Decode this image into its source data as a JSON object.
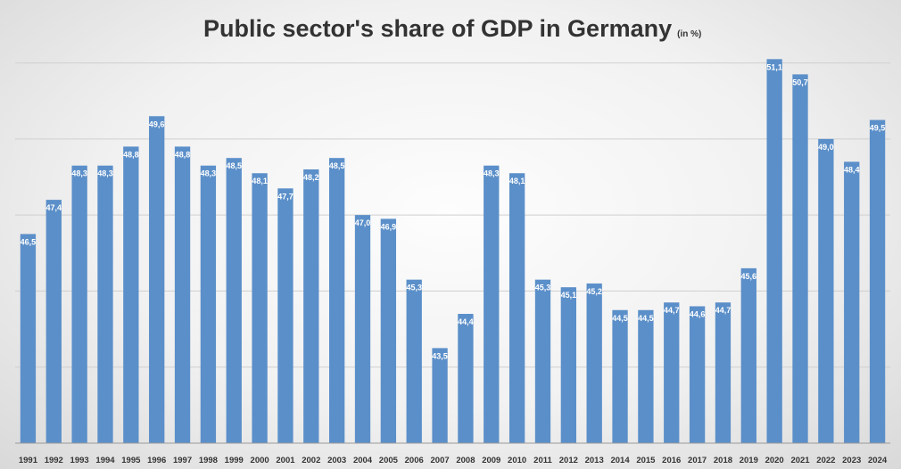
{
  "chart_data": {
    "type": "bar",
    "title": "Public sector's share of GDP in Germany",
    "subtitle": "(in %)",
    "xlabel": "",
    "ylabel": "",
    "ylim": [
      41,
      51.6
    ],
    "grid": true,
    "legend": "none",
    "bar_color": "#5b8fc9",
    "categories": [
      "1991",
      "1992",
      "1993",
      "1994",
      "1995",
      "1996",
      "1997",
      "1998",
      "1999",
      "2000",
      "2001",
      "2002",
      "2003",
      "2004",
      "2005",
      "2006",
      "2007",
      "2008",
      "2009",
      "2010",
      "2011",
      "2012",
      "2013",
      "2014",
      "2015",
      "2016",
      "2017",
      "2018",
      "2019",
      "2020",
      "2021",
      "2022",
      "2023",
      "2024"
    ],
    "values": [
      46.5,
      47.4,
      48.3,
      48.3,
      48.8,
      49.6,
      48.8,
      48.3,
      48.5,
      48.1,
      47.7,
      48.2,
      48.5,
      47.0,
      46.9,
      45.3,
      43.5,
      44.4,
      48.3,
      48.1,
      45.3,
      45.1,
      45.2,
      44.5,
      44.5,
      44.7,
      44.6,
      44.7,
      45.6,
      51.1,
      50.7,
      49.0,
      48.4,
      49.5
    ],
    "value_labels": [
      "46,5",
      "47,4",
      "48,3",
      "48,3",
      "48,8",
      "49,6",
      "48,8",
      "48,3",
      "48,5",
      "48,1",
      "47,7",
      "48,2",
      "48,5",
      "47,0",
      "46,9",
      "45,3",
      "43,5",
      "44,4",
      "48,3",
      "48,1",
      "45,3",
      "45,1",
      "45,2",
      "44,5",
      "44,5",
      "44,7",
      "44,6",
      "44,7",
      "45,6",
      "51,1",
      "50,7",
      "49,0",
      "48,4",
      "49,5"
    ]
  }
}
